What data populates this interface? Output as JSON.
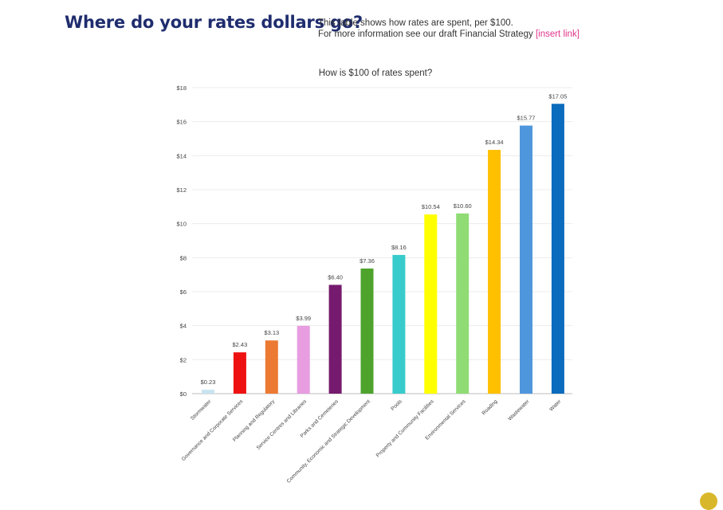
{
  "header": {
    "title": "Where do your rates dollars go?",
    "intro_line1": "This table shows how rates are spent, per $100.",
    "intro_line2": "For more information see our draft Financial Strategy",
    "intro_link": "[insert link]"
  },
  "chart_data": {
    "type": "bar",
    "title": "How is $100 of rates spent?",
    "xlabel": "",
    "ylabel": "",
    "ylim": [
      0,
      18
    ],
    "yticks": [
      0,
      2,
      4,
      6,
      8,
      10,
      12,
      14,
      16,
      18
    ],
    "ytick_labels": [
      "$0",
      "$2",
      "$4",
      "$6",
      "$8",
      "$10",
      "$12",
      "$14",
      "$16",
      "$18"
    ],
    "grid": true,
    "legend": "none",
    "categories": [
      "Stormwater",
      "Governance and Corporate Services",
      "Planning and Regulatory",
      "Service Centres and Libraries",
      "Parks and Cemeteries",
      "Community, Economic and Strategic Development",
      "Pools",
      "Property and Community Facilities",
      "Environmental Services",
      "Roading",
      "Wastewater",
      "Water"
    ],
    "values": [
      0.23,
      2.43,
      3.13,
      3.99,
      6.4,
      7.36,
      8.16,
      10.54,
      10.6,
      14.34,
      15.77,
      17.05
    ],
    "data_labels": [
      "$0.23",
      "$2.43",
      "$3.13",
      "$3.99",
      "$6.40",
      "$7.36",
      "$8.16",
      "$10.54",
      "$10.60",
      "$14.34",
      "$15.77",
      "$17.05"
    ],
    "colors": [
      "#c8e4f2",
      "#ee1111",
      "#ec7a32",
      "#e79de0",
      "#751a6e",
      "#4ea32d",
      "#37cccb",
      "#ffff00",
      "#8fdc74",
      "#ffc000",
      "#4f97dc",
      "#0b6bbd"
    ]
  }
}
